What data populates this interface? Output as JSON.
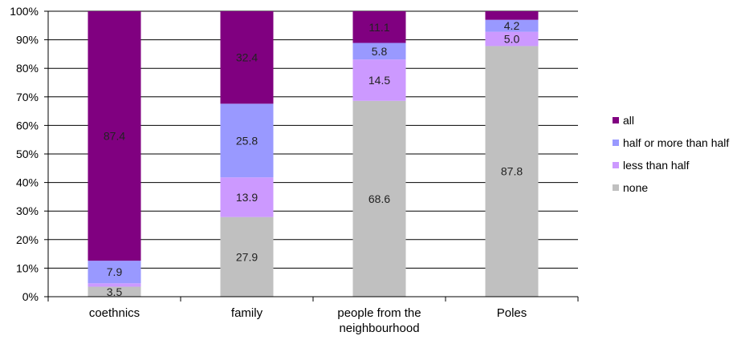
{
  "chart_data": {
    "type": "bar",
    "stacked": true,
    "percent": true,
    "title": "",
    "xlabel": "",
    "ylabel": "",
    "ylim": [
      0,
      100
    ],
    "y_ticks": [
      "0%",
      "10%",
      "20%",
      "30%",
      "40%",
      "50%",
      "60%",
      "70%",
      "80%",
      "90%",
      "100%"
    ],
    "grid": true,
    "legend_position": "right",
    "categories": [
      [
        "coethnics"
      ],
      [
        "family"
      ],
      [
        "people from the",
        "neighbourhood"
      ],
      [
        "Poles"
      ]
    ],
    "series": [
      {
        "name": "none",
        "color": "#c0c0c0",
        "values": [
          3.5,
          27.9,
          68.6,
          87.8
        ],
        "labels": [
          "3.5",
          "27.9",
          "68.6",
          "87.8"
        ]
      },
      {
        "name": "less than half",
        "color": "#cc99ff",
        "values": [
          1.2,
          13.9,
          14.5,
          5.0
        ],
        "labels": [
          "",
          "13.9",
          "14.5",
          "5.0"
        ]
      },
      {
        "name": "half or more than half",
        "color": "#9999ff",
        "values": [
          7.9,
          25.8,
          5.8,
          4.2
        ],
        "labels": [
          "7.9",
          "25.8",
          "5.8",
          "4.2"
        ]
      },
      {
        "name": "all",
        "color": "#800080",
        "values": [
          87.4,
          32.4,
          11.1,
          3.0
        ],
        "labels": [
          "87.4",
          "32.4",
          "11.1",
          ""
        ]
      }
    ],
    "legend_order": [
      "all",
      "half or more than half",
      "less than half",
      "none"
    ]
  }
}
